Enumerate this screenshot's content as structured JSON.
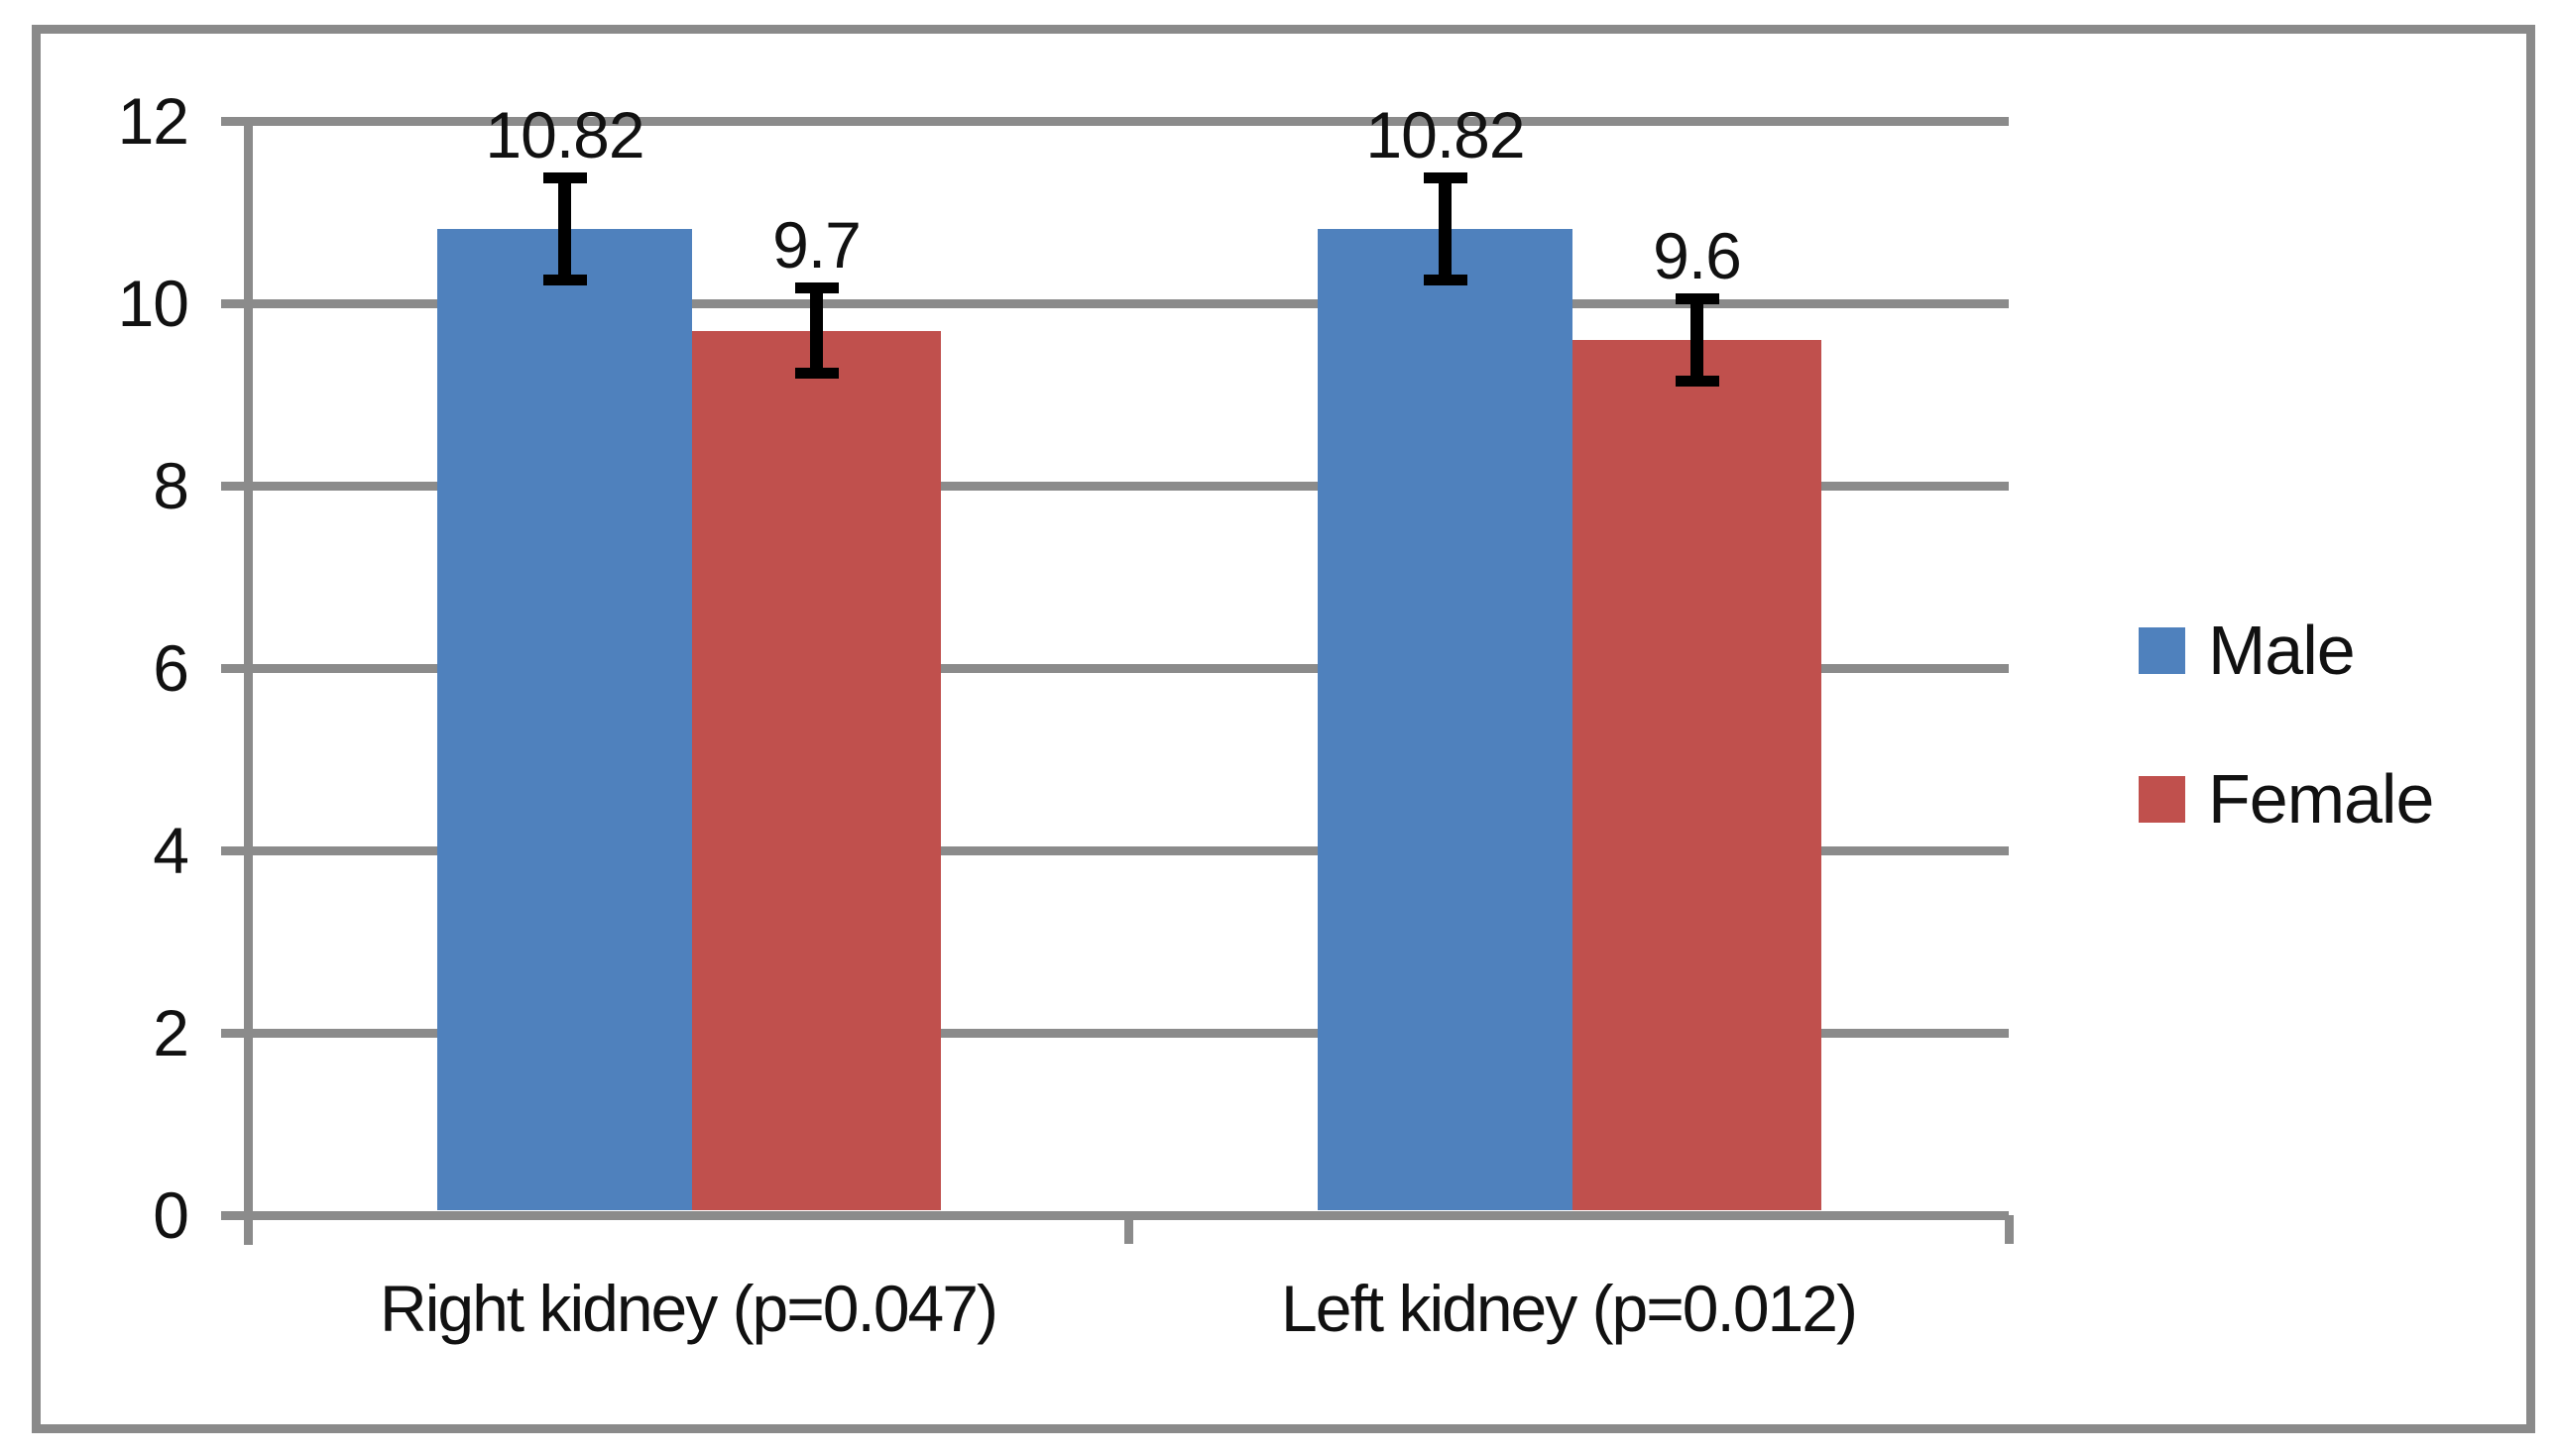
{
  "chart_data": {
    "type": "bar",
    "categories": [
      "Right kidney (p=0.047)",
      "Left kidney (p=0.012)"
    ],
    "series": [
      {
        "name": "Male",
        "color": "#4F81BD",
        "values": [
          10.82,
          10.82
        ],
        "error_bars": [
          0.56,
          0.56
        ],
        "data_labels": [
          "10.82",
          "10.82"
        ]
      },
      {
        "name": "Female",
        "color": "#C0504D",
        "values": [
          9.7,
          9.6
        ],
        "error_bars": [
          0.47,
          0.45
        ],
        "data_labels": [
          "9.7",
          "9.6"
        ]
      }
    ],
    "ylim": [
      0,
      12
    ],
    "yticks": [
      0,
      2,
      4,
      6,
      8,
      10,
      12
    ],
    "grid": true,
    "legend_position": "right-middle",
    "error_bar_color": "#000000",
    "gridline_color": "#8b8b8b",
    "axis_color": "#8b8b8b",
    "text_color": "#111111",
    "figure_border_color": "#8a8a8a",
    "background": "#ffffff"
  }
}
